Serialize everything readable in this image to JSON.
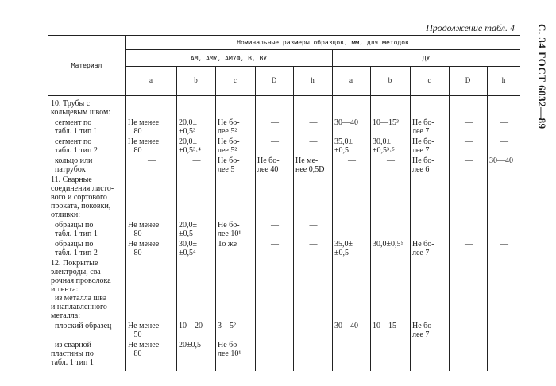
{
  "header": {
    "continuation": "Продолжение табл. 4",
    "side_title": "С. 34 ГОСТ 6032—89"
  },
  "table": {
    "material_header": "Материал",
    "nominal_header": "Номинальные размеры образцов, мм, для методов",
    "groups": [
      "АМ, АМУ, АМУФ, В, ВУ",
      "ДУ"
    ],
    "columns": [
      "a",
      "b",
      "c",
      "D",
      "h",
      "a",
      "b",
      "c",
      "D",
      "h"
    ],
    "rows": [
      {
        "material": "10. Трубы с\nкольцевым швом:",
        "cells": []
      },
      {
        "material": "  сегмент по\n  табл. 1 тип I",
        "cells": [
          "Не менее\n   80",
          "20,0±\n±0,5³",
          "Не бо-\nлее 5²",
          "—",
          "—",
          "30—40",
          "10—15³",
          "Не бо-\nлее 7",
          "—",
          "—"
        ]
      },
      {
        "material": "  сегмент по\n  табл. 1 тип 2",
        "cells": [
          "Не менее\n   80",
          "20,0±\n±0,5³˒⁴",
          "Не бо-\nлее 5²",
          "—",
          "—",
          "35,0±\n±0,5",
          "30,0±\n±0,5³˒⁵",
          "Не бо-\nлее 7",
          "—",
          "—"
        ]
      },
      {
        "material": "  кольцо или\n  патрубок",
        "cells": [
          "—",
          "—",
          "Не бо-\nлее 5",
          "Не бо-\nлее 40",
          "Не ме-\nнее 0,5D",
          "—",
          "—",
          "Не бо-\nлее 6",
          "—",
          "30—40"
        ]
      },
      {
        "material": "11. Сварные\nсоединения листо-\nвого и сортового\nпроката, поковки,\nотливки:",
        "cells": []
      },
      {
        "material": "  образцы по\n  табл. 1 тип 1",
        "cells": [
          "Не менее\n   80",
          "20,0±\n±0,5",
          "Не бо-\nлее 10¹",
          "—",
          "—",
          "",
          "",
          "",
          "",
          ""
        ]
      },
      {
        "material": "  образцы по\n  табл. 1 тип 2",
        "cells": [
          "Не менее\n   80",
          "30,0±\n±0,5⁴",
          "То же",
          "—",
          "—",
          "35,0±\n±0,5",
          "30,0±0,5⁵",
          "Не бо-\nлее 7",
          "—",
          "—"
        ]
      },
      {
        "material": "12. Покрытые\nэлектроды, сва-\nрочная проволока\nи лента:\n  из металла шва\nи наплавленного\nметалла:",
        "cells": []
      },
      {
        "material": "  плоский образец",
        "cells": [
          "Не менее\n   50",
          "10—20",
          "3—5²",
          "—",
          "—",
          "30—40",
          "10—15",
          "Не бо-\nлее 7",
          "—",
          "—"
        ]
      },
      {
        "material": "  из сварной\nпластины по\nтабл. 1 тип 1",
        "cells": [
          "Не менее\n   80",
          "20±0,5",
          "Не бо-\nлее 10¹",
          "—",
          "—",
          "—",
          "—",
          "—",
          "—",
          "—"
        ]
      }
    ]
  }
}
